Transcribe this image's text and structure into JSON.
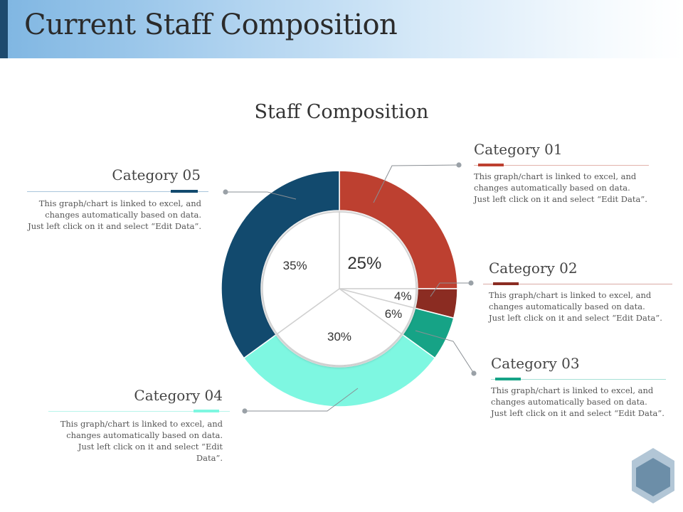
{
  "page": {
    "title": "Current Staff Composition"
  },
  "chart_data": {
    "type": "pie",
    "title": "Staff Composition",
    "categories": [
      "Category 01",
      "Category 02",
      "Category 03",
      "Category 04",
      "Category 05"
    ],
    "values": [
      25,
      4,
      6,
      30,
      35
    ],
    "value_labels": [
      "25%",
      "4%",
      "6%",
      "30%",
      "35%"
    ],
    "colors": [
      "#bd4030",
      "#8b2c22",
      "#16a386",
      "#7ef7e1",
      "#124a6e"
    ]
  },
  "categories": [
    {
      "title": "Category 01",
      "desc": "This graph/chart is linked to excel, and changes automatically based on data. Just left click on it and select “Edit Data”.",
      "color": "#bd4030"
    },
    {
      "title": "Category 02",
      "desc": "This graph/chart is linked to excel, and changes automatically based on data. Just left click on it and select “Edit Data”.",
      "color": "#8b2c22"
    },
    {
      "title": "Category 03",
      "desc": "This graph/chart is linked to excel, and changes automatically based on data. Just left click on it and select “Edit Data”.",
      "color": "#16a386"
    },
    {
      "title": "Category 04",
      "desc": "This graph/chart is linked to excel, and changes automatically based on data. Just left click on it and select “Edit Data”.",
      "color": "#7ef7e1"
    },
    {
      "title": "Category 05",
      "desc": "This graph/chart is linked to excel, and changes automatically based on data. Just left click on it and select “Edit Data”.",
      "color": "#124a6e"
    }
  ],
  "decor": {
    "badge_icon": "hexagon-icon",
    "badge_colors": [
      "#b2c6d6",
      "#6c8ea8"
    ]
  }
}
